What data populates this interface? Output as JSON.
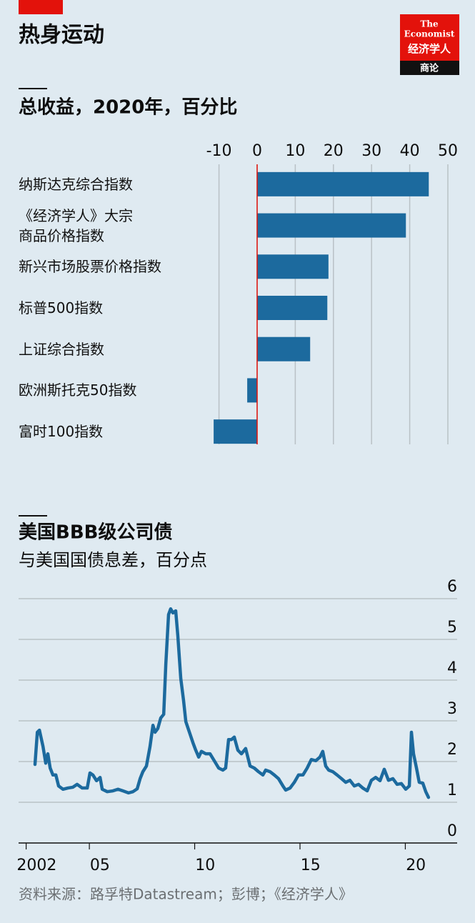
{
  "header": {
    "title": "热身运动",
    "logo": {
      "line1": "The",
      "line2": "Economist",
      "line3": "经济学人",
      "line4": "商论"
    }
  },
  "chart_data": [
    {
      "type": "bar",
      "title": "总收益，2020年，百分比",
      "categories": [
        "纳斯达克综合指数",
        "《经济学人》大宗\n商品价格指数",
        "新兴市场股票价格指数",
        "标普500指数",
        "上证综合指数",
        "欧洲斯托克50指数",
        "富时100指数"
      ],
      "values": [
        45,
        39,
        18.7,
        18.4,
        13.9,
        -2.6,
        -11.4
      ],
      "color": "#1c6a9e",
      "xlim": [
        -12,
        50
      ],
      "xticks": [
        -10,
        0,
        10,
        20,
        30,
        40,
        50
      ],
      "grid": true
    },
    {
      "type": "line",
      "title": "美国BBB级公司债",
      "subtitle": "与美国国债息差，百分点",
      "x": [
        2002.42,
        2002.53,
        2002.63,
        2002.8,
        2002.93,
        2003.03,
        2003.14,
        2003.27,
        2003.41,
        2003.54,
        2003.75,
        2003.98,
        2004.22,
        2004.42,
        2004.66,
        2004.9,
        2005.03,
        2005.17,
        2005.34,
        2005.51,
        2005.61,
        2005.85,
        2006.12,
        2006.36,
        2006.59,
        2006.86,
        2007.07,
        2007.27,
        2007.41,
        2007.54,
        2007.71,
        2007.88,
        2008.02,
        2008.12,
        2008.25,
        2008.39,
        2008.53,
        2008.63,
        2008.76,
        2008.86,
        2008.97,
        2009.1,
        2009.2,
        2009.34,
        2009.47,
        2009.58,
        2009.75,
        2009.92,
        2010.05,
        2010.19,
        2010.32,
        2010.53,
        2010.73,
        2010.93,
        2011.14,
        2011.34,
        2011.47,
        2011.61,
        2011.75,
        2011.88,
        2012.05,
        2012.22,
        2012.42,
        2012.63,
        2012.83,
        2013.03,
        2013.24,
        2013.37,
        2013.58,
        2013.78,
        2013.98,
        2014.19,
        2014.32,
        2014.53,
        2014.73,
        2014.93,
        2015.14,
        2015.34,
        2015.54,
        2015.75,
        2015.95,
        2016.08,
        2016.22,
        2016.36,
        2016.56,
        2016.76,
        2016.97,
        2017.17,
        2017.37,
        2017.58,
        2017.78,
        2017.98,
        2018.19,
        2018.39,
        2018.59,
        2018.8,
        2019.0,
        2019.2,
        2019.41,
        2019.61,
        2019.81,
        2020.02,
        2020.19,
        2020.29,
        2020.39,
        2020.53,
        2020.66,
        2020.83,
        2020.97,
        2021.1
      ],
      "values": [
        1.93,
        2.72,
        2.77,
        2.37,
        1.96,
        2.19,
        1.84,
        1.67,
        1.67,
        1.4,
        1.32,
        1.35,
        1.37,
        1.44,
        1.35,
        1.35,
        1.72,
        1.67,
        1.53,
        1.61,
        1.32,
        1.26,
        1.28,
        1.32,
        1.28,
        1.23,
        1.26,
        1.33,
        1.58,
        1.75,
        1.89,
        2.37,
        2.89,
        2.72,
        2.81,
        3.07,
        3.16,
        4.39,
        5.61,
        5.75,
        5.65,
        5.7,
        5.09,
        4.04,
        3.51,
        2.98,
        2.72,
        2.46,
        2.28,
        2.11,
        2.25,
        2.19,
        2.19,
        2.02,
        1.84,
        1.79,
        1.84,
        2.54,
        2.54,
        2.6,
        2.28,
        2.19,
        2.32,
        1.89,
        1.84,
        1.75,
        1.67,
        1.79,
        1.75,
        1.67,
        1.58,
        1.4,
        1.3,
        1.35,
        1.49,
        1.67,
        1.67,
        1.84,
        2.05,
        2.02,
        2.11,
        2.25,
        1.89,
        1.79,
        1.75,
        1.67,
        1.58,
        1.49,
        1.54,
        1.4,
        1.44,
        1.35,
        1.28,
        1.54,
        1.61,
        1.53,
        1.81,
        1.54,
        1.58,
        1.44,
        1.46,
        1.32,
        1.4,
        2.72,
        2.19,
        1.84,
        1.49,
        1.47,
        1.26,
        1.12
      ],
      "color": "#1c6a9e",
      "xlim": [
        2001.64,
        2022.46
      ],
      "xticks": [
        2002,
        {
          "value": 2005,
          "label": "05"
        },
        {
          "value": 2010,
          "label": "10"
        },
        {
          "value": 2015,
          "label": "15"
        },
        {
          "value": 2020,
          "label": "20"
        }
      ],
      "ylim": [
        0,
        6
      ],
      "yticks": [
        0,
        1,
        2,
        3,
        4,
        5,
        6
      ],
      "grid": true
    }
  ],
  "source": "资料来源：路孚特Datastream；彭博；《经济学人》"
}
